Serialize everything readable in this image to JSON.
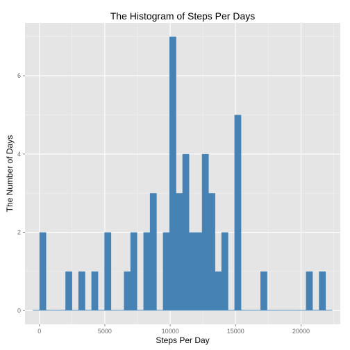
{
  "chart_data": {
    "type": "bar",
    "subtype": "histogram",
    "title": "The Histogram of Steps Per Days",
    "xlabel": "Steps Per Day",
    "ylabel": "The Number of Days",
    "xlim": [
      -1100,
      23000
    ],
    "ylim": [
      -0.35,
      7.35
    ],
    "xticks": [
      0,
      5000,
      10000,
      15000,
      20000
    ],
    "yticks": [
      0,
      2,
      4,
      6
    ],
    "grid": true,
    "legend": "none",
    "colors": {
      "bar": "#4682b4",
      "panel": "#e5e5e5",
      "grid_major": "#ffffff",
      "grid_minor": "#f2f2f2"
    },
    "bins": {
      "start": -497,
      "width": 497,
      "counts": [
        0,
        2,
        0,
        0,
        0,
        1,
        0,
        1,
        0,
        1,
        0,
        2,
        0,
        0,
        1,
        2,
        0,
        2,
        3,
        0,
        2,
        7,
        3,
        4,
        2,
        2,
        4,
        3,
        1,
        2,
        0,
        5,
        0,
        0,
        0,
        1,
        0,
        0,
        0,
        0,
        0,
        0,
        1,
        0,
        1,
        0
      ]
    }
  }
}
